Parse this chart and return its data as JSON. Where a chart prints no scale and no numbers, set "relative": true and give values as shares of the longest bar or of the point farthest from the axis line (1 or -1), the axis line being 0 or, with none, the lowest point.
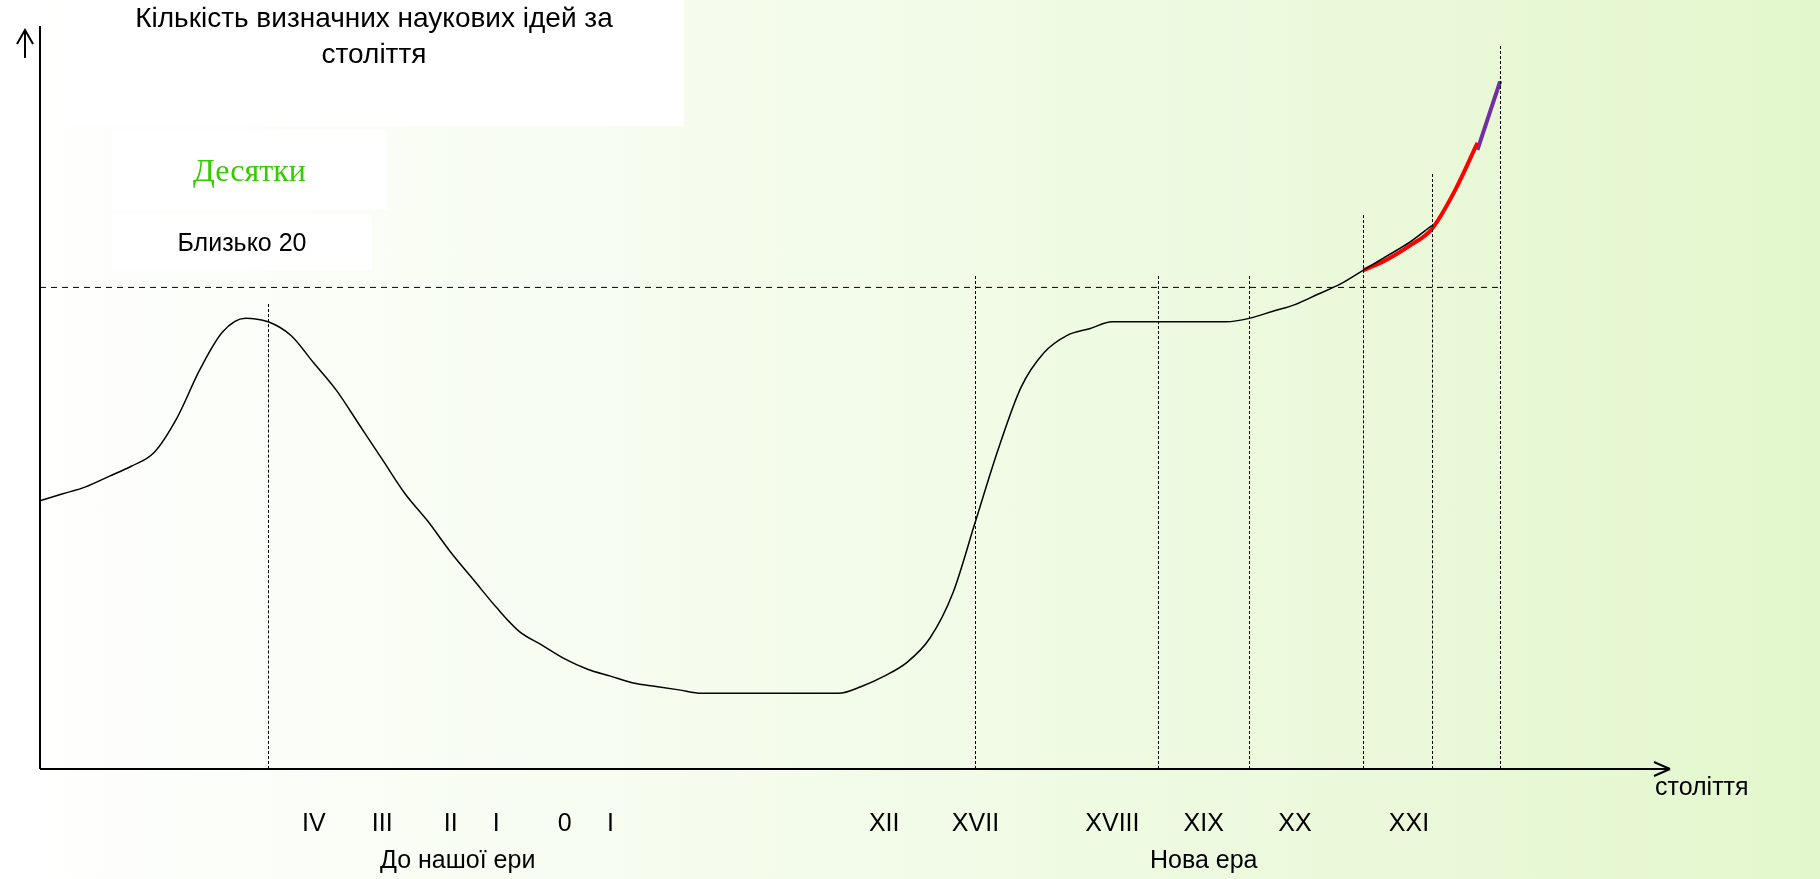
{
  "chart_data": {
    "type": "line",
    "relative": true,
    "title": "Кількість визначних наукових ідей за століття",
    "xlabel": "століття",
    "categories": [
      null,
      null,
      null,
      null,
      null,
      null,
      null,
      null,
      null,
      null,
      null,
      null,
      "IV",
      null,
      null,
      "III",
      null,
      null,
      "II",
      null,
      "I",
      null,
      null,
      "0",
      null,
      "I",
      null,
      null,
      null,
      null,
      null,
      null,
      null,
      null,
      null,
      null,
      null,
      "XII",
      null,
      null,
      null,
      "XVII",
      null,
      null,
      null,
      null,
      null,
      "XVIII",
      null,
      null,
      null,
      "XIX",
      null,
      null,
      null,
      "XX",
      null,
      null,
      null,
      null,
      "XXI",
      null,
      null,
      null,
      null,
      null,
      null,
      null,
      null,
      null,
      null,
      null
    ],
    "series": [
      {
        "color": "#000000",
        "values": [
          0.39,
          0.4,
          0.41,
          0.425,
          0.44,
          0.46,
          0.51,
          0.58,
          0.635,
          0.655,
          0.65,
          0.63,
          0.59,
          0.55,
          0.5,
          0.45,
          0.4,
          0.36,
          0.315,
          0.275,
          0.235,
          0.2,
          0.18,
          0.16,
          0.145,
          0.135,
          0.125,
          0.12,
          0.115,
          0.11,
          0.11,
          0.11,
          0.11,
          0.11,
          0.11,
          0.11,
          0.12,
          0.135,
          0.155,
          0.19,
          0.255,
          0.36,
          0.465,
          0.555,
          0.605,
          0.63,
          0.64,
          0.65,
          0.65,
          0.65,
          0.65,
          0.65,
          0.65,
          0.655,
          0.665,
          0.675,
          0.69,
          0.705,
          0.725,
          0.745,
          0.765,
          0.79,
          null,
          null,
          null,
          null,
          null,
          null,
          null,
          null,
          null,
          null
        ]
      },
      {
        "color": "#ff0000",
        "values": [
          null,
          null,
          null,
          null,
          null,
          null,
          null,
          null,
          null,
          null,
          null,
          null,
          null,
          null,
          null,
          null,
          null,
          null,
          null,
          null,
          null,
          null,
          null,
          null,
          null,
          null,
          null,
          null,
          null,
          null,
          null,
          null,
          null,
          null,
          null,
          null,
          null,
          null,
          null,
          null,
          null,
          null,
          null,
          null,
          null,
          null,
          null,
          null,
          null,
          null,
          null,
          null,
          null,
          null,
          null,
          null,
          null,
          null,
          0.725,
          0.74,
          0.76,
          0.785,
          0.84,
          0.91,
          null,
          null,
          null,
          null,
          null,
          null,
          null,
          null
        ]
      },
      {
        "color": "#7030a0",
        "values": [
          null,
          null,
          null,
          null,
          null,
          null,
          null,
          null,
          null,
          null,
          null,
          null,
          null,
          null,
          null,
          null,
          null,
          null,
          null,
          null,
          null,
          null,
          null,
          null,
          null,
          null,
          null,
          null,
          null,
          null,
          null,
          null,
          null,
          null,
          null,
          null,
          null,
          null,
          null,
          null,
          null,
          null,
          null,
          null,
          null,
          null,
          null,
          null,
          null,
          null,
          null,
          null,
          null,
          null,
          null,
          null,
          null,
          null,
          null,
          null,
          null,
          null,
          null,
          0.9,
          1.0,
          null,
          null,
          null,
          null,
          null,
          null,
          null
        ]
      }
    ],
    "ref_lines": [
      {
        "axis": "y",
        "value": 0.7,
        "line_style": "dashed"
      }
    ],
    "annotations": [
      "Десятки",
      "Близько 20",
      "До нашої ери",
      "Нова ера"
    ],
    "legend": false,
    "grid": false
  }
}
